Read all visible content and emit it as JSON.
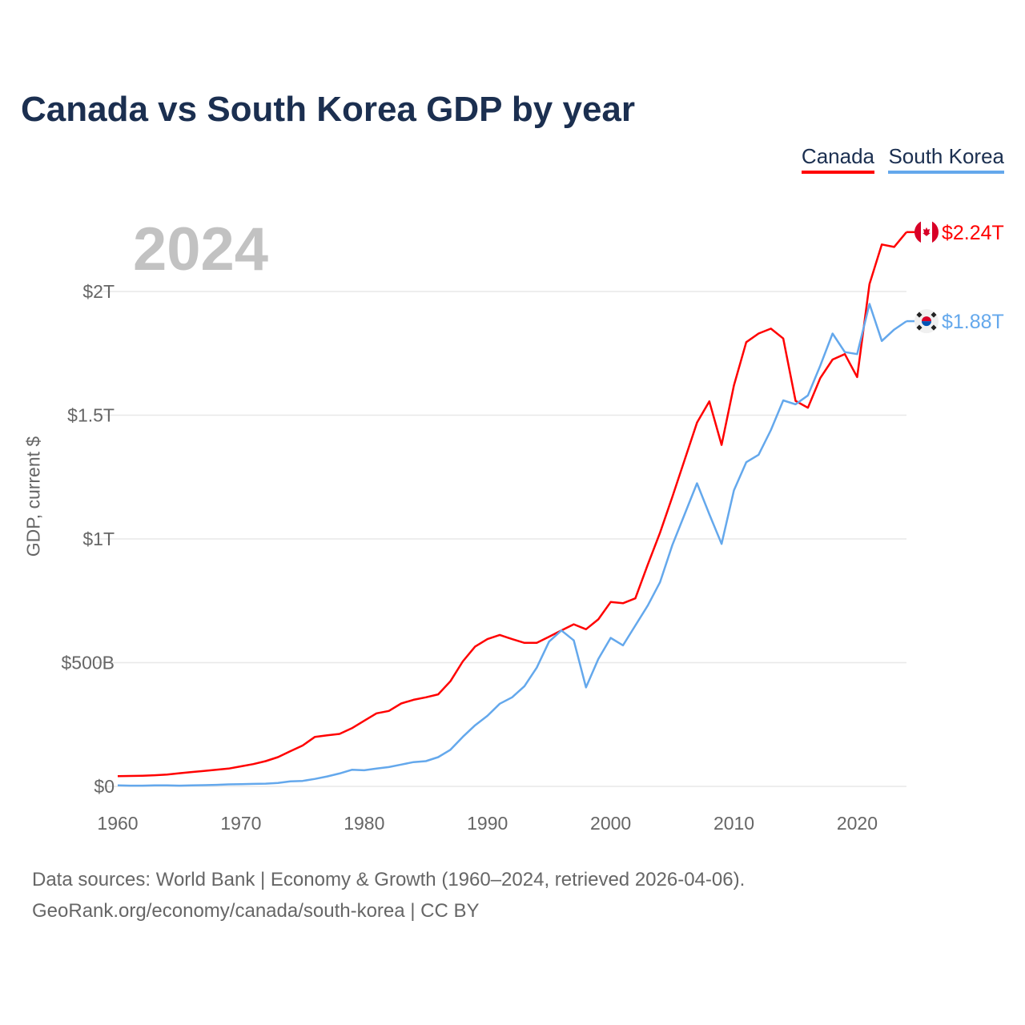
{
  "chart_data": {
    "type": "line",
    "title": "Canada vs South Korea GDP by year",
    "ylabel": "GDP, current $",
    "xlabel": "",
    "current_year_label": "2024",
    "x_start": 1960,
    "x_end": 2024,
    "xlim": [
      1960,
      2024
    ],
    "ylim": [
      0,
      2.0
    ],
    "y_unit": "trillion US$",
    "x_ticks": [
      1960,
      1970,
      1980,
      1990,
      2000,
      2010,
      2020
    ],
    "x_tick_labels": [
      "1960",
      "1970",
      "1980",
      "1990",
      "2000",
      "2010",
      "2020"
    ],
    "y_ticks": [
      0,
      0.5,
      1,
      1.5,
      2
    ],
    "y_tick_labels": [
      "$0",
      "$500B",
      "$1T",
      "$1.5T",
      "$2T"
    ],
    "grid": true,
    "legend_position": "top-right",
    "series": [
      {
        "name": "Canada",
        "color": "#ff0000",
        "end_label": "$2.24T",
        "flag_icon": "canada-flag-icon",
        "values": [
          0.041,
          0.042,
          0.043,
          0.045,
          0.048,
          0.053,
          0.058,
          0.062,
          0.067,
          0.072,
          0.081,
          0.09,
          0.102,
          0.118,
          0.142,
          0.165,
          0.2,
          0.206,
          0.212,
          0.235,
          0.265,
          0.295,
          0.305,
          0.335,
          0.35,
          0.36,
          0.372,
          0.425,
          0.505,
          0.565,
          0.595,
          0.612,
          0.595,
          0.58,
          0.58,
          0.605,
          0.63,
          0.655,
          0.635,
          0.675,
          0.745,
          0.74,
          0.76,
          0.895,
          1.025,
          1.17,
          1.32,
          1.47,
          1.556,
          1.38,
          1.62,
          1.795,
          1.83,
          1.85,
          1.81,
          1.558,
          1.53,
          1.65,
          1.725,
          1.747,
          1.654,
          2.03,
          2.19,
          2.18,
          2.24
        ]
      },
      {
        "name": "South Korea",
        "color": "#64a8ec",
        "end_label": "$1.88T",
        "flag_icon": "south-korea-flag-icon",
        "values": [
          0.004,
          0.003,
          0.003,
          0.004,
          0.004,
          0.003,
          0.004,
          0.005,
          0.006,
          0.008,
          0.009,
          0.01,
          0.011,
          0.014,
          0.02,
          0.022,
          0.03,
          0.04,
          0.052,
          0.067,
          0.065,
          0.072,
          0.078,
          0.088,
          0.098,
          0.102,
          0.118,
          0.148,
          0.2,
          0.247,
          0.285,
          0.334,
          0.36,
          0.405,
          0.48,
          0.585,
          0.63,
          0.59,
          0.4,
          0.515,
          0.6,
          0.57,
          0.65,
          0.73,
          0.825,
          0.975,
          1.1,
          1.225,
          1.1,
          0.98,
          1.196,
          1.31,
          1.34,
          1.44,
          1.56,
          1.544,
          1.58,
          1.7,
          1.83,
          1.755,
          1.747,
          1.95,
          1.8,
          1.846,
          1.88
        ]
      }
    ]
  },
  "footer": {
    "line1": "Data sources: World Bank | Economy & Growth (1960–2024, retrieved 2026-04-06).",
    "line2": "GeoRank.org/economy/canada/south-korea | CC BY"
  }
}
